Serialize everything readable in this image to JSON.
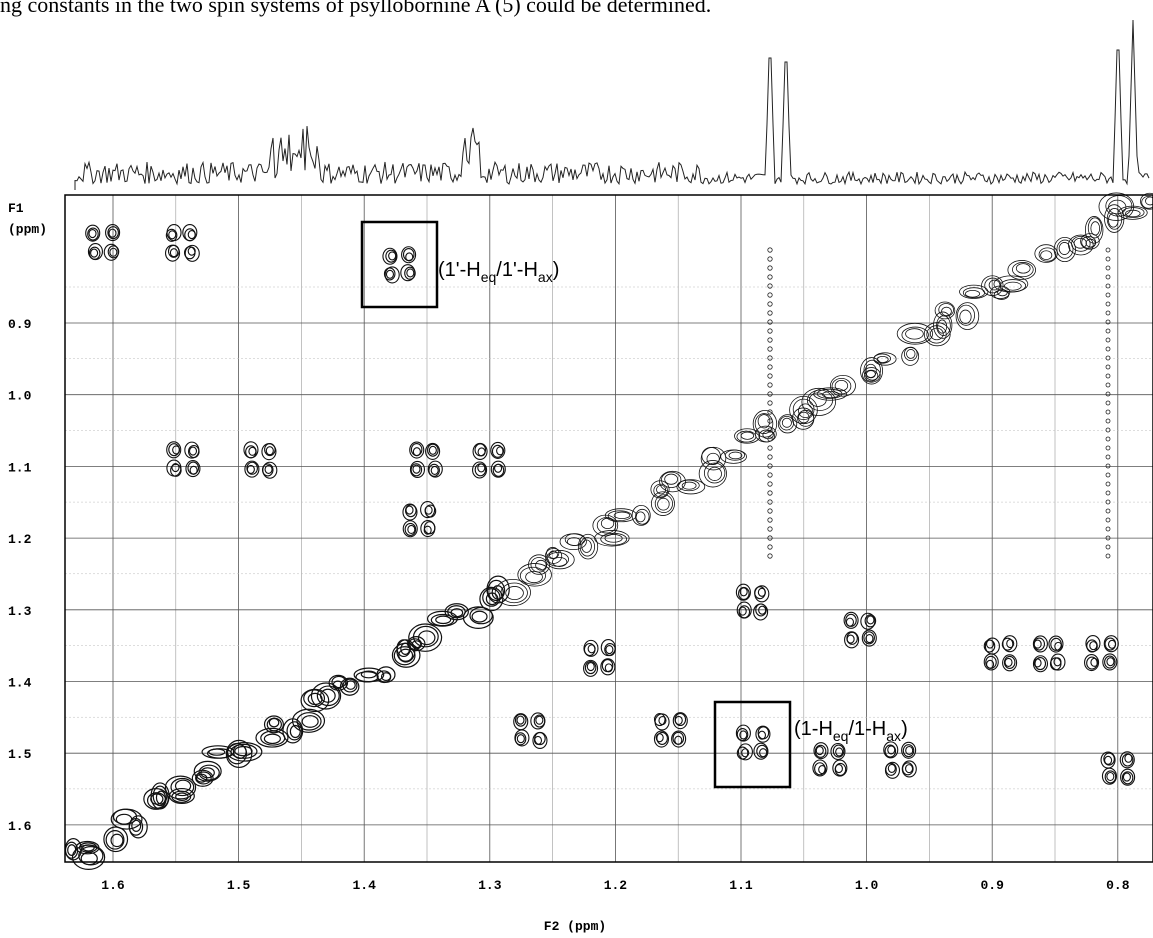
{
  "caption": "ng constants in the two spin systems of psyllobornine A (5) could be determined.",
  "figure": {
    "x_axis_label": "F2 (ppm)",
    "y_axis_label_line1": "F1",
    "y_axis_label_line2": "(ppm)",
    "x_ticks": [
      "1.6",
      "1.5",
      "1.4",
      "1.3",
      "1.2",
      "1.1",
      "1.0",
      "0.9",
      "0.8"
    ],
    "y_ticks": [
      "0.9",
      "1.0",
      "1.1",
      "1.2",
      "1.3",
      "1.4",
      "1.5",
      "1.6"
    ],
    "annotations": [
      {
        "open": "(1'-H",
        "sub1": "eq",
        "mid": "/1'-H",
        "sub2": "ax",
        "close": ")"
      },
      {
        "open": "(1-H",
        "sub1": "eq",
        "mid": "/1-H",
        "sub2": "ax",
        "close": ")"
      }
    ]
  }
}
